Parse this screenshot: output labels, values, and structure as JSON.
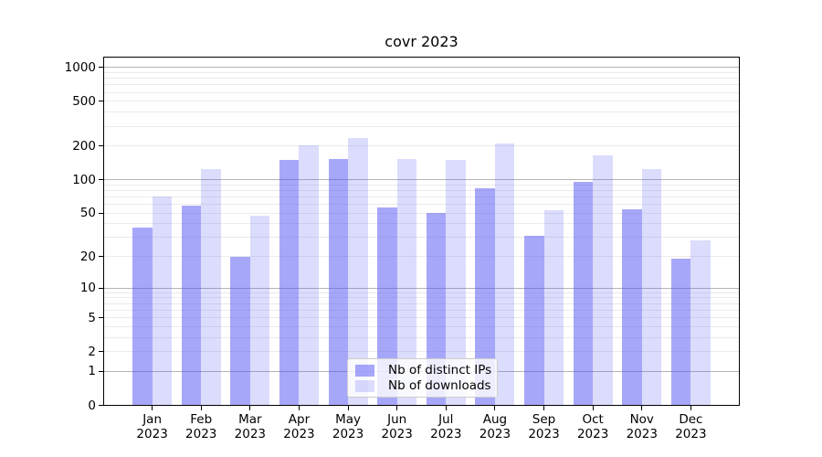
{
  "chart_data": {
    "type": "bar",
    "title": "covr 2023",
    "categories": [
      "Jan 2023",
      "Feb 2023",
      "Mar 2023",
      "Apr 2023",
      "May 2023",
      "Jun 2023",
      "Jul 2023",
      "Aug 2023",
      "Sep 2023",
      "Oct 2023",
      "Nov 2023",
      "Dec 2023"
    ],
    "series": [
      {
        "name": "Nb of distinct IPs",
        "color": "#5050f5",
        "alpha": 0.5,
        "values": [
          37,
          58,
          20,
          150,
          153,
          56,
          50,
          83,
          31,
          95,
          54,
          19
        ]
      },
      {
        "name": "Nb of downloads",
        "color": "#5050f5",
        "alpha": 0.2,
        "values": [
          70,
          125,
          47,
          202,
          238,
          152,
          150,
          210,
          53,
          165,
          125,
          28
        ]
      }
    ],
    "yscale": "log1p",
    "ylim": [
      0,
      1250
    ],
    "yticks": [
      0,
      1,
      2,
      5,
      10,
      20,
      50,
      100,
      200,
      500,
      1000
    ],
    "grid": {
      "major_values": [
        1,
        10,
        100,
        1000
      ],
      "minor_values": [
        2,
        3,
        4,
        5,
        6,
        7,
        8,
        9,
        20,
        30,
        40,
        50,
        60,
        70,
        80,
        90,
        200,
        300,
        400,
        500,
        600,
        700,
        800,
        900
      ],
      "major_color": "#b4b4b4",
      "minor_color": "#ebebeb"
    },
    "legend": {
      "position": "lower center"
    },
    "axis_color": "#000000",
    "text_color": "#000000"
  }
}
